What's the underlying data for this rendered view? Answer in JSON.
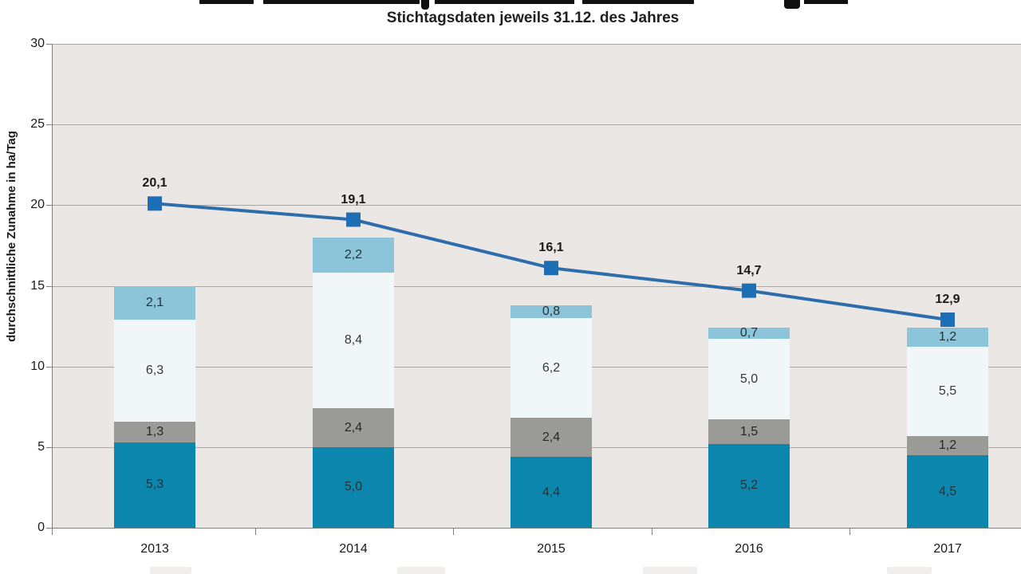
{
  "header": {
    "main_title_cropped": true,
    "subtitle": "Stichtagsdaten jeweils 31.12. des Jahres"
  },
  "y_axis": {
    "label": "durchschnittliche Zunahme in ha/Tag",
    "ticks": [
      "0",
      "5",
      "10",
      "15",
      "20",
      "25",
      "30"
    ]
  },
  "x_axis": {
    "ticks": [
      "2013",
      "2014",
      "2015",
      "2016",
      "2017"
    ]
  },
  "chart_data": {
    "type": "bar",
    "subtype": "stacked-column-with-line-overlay",
    "title": "",
    "subtitle": "Stichtagsdaten jeweils 31.12. des Jahres",
    "xlabel": "",
    "ylabel": "durchschnittliche Zunahme in ha/Tag",
    "categories": [
      "2013",
      "2014",
      "2015",
      "2016",
      "2017"
    ],
    "bar_series": [
      {
        "name": "",
        "color": "#0d86ad",
        "values": [
          5.3,
          5.0,
          4.4,
          5.2,
          4.5
        ],
        "labels": [
          "5,3",
          "5,0",
          "4,4",
          "5,2",
          "4,5"
        ],
        "label_color": "#263238"
      },
      {
        "name": "",
        "color": "#9a9a97",
        "values": [
          1.3,
          2.4,
          2.4,
          1.5,
          1.2
        ],
        "labels": [
          "1,3",
          "2,4",
          "2,4",
          "1,5",
          "1,2"
        ],
        "label_color": "#262626"
      },
      {
        "name": "",
        "color": "#f1f6f9",
        "values": [
          6.3,
          8.4,
          6.2,
          5.0,
          5.5
        ],
        "labels": [
          "6,3",
          "8,4",
          "6,2",
          "5,0",
          "5,5"
        ],
        "label_color": "#33383c"
      },
      {
        "name": "",
        "color": "#8cc4da",
        "values": [
          2.1,
          2.2,
          0.8,
          0.7,
          1.2
        ],
        "labels": [
          "2,1",
          "2,2",
          "0,8",
          "0,7",
          "1,2"
        ],
        "label_color": "#263238"
      }
    ],
    "line_series": {
      "name": "",
      "color": "#2d6dab",
      "marker_color": "#1d6fb5",
      "values": [
        20.1,
        19.1,
        16.1,
        14.7,
        12.9
      ],
      "labels": [
        "20,1",
        "19,1",
        "16,1",
        "14,7",
        "12,9"
      ]
    },
    "stack_totals": [
      15.0,
      18.0,
      13.8,
      12.4,
      12.4
    ],
    "ylim": [
      0,
      30
    ],
    "ytick_step": 5,
    "grid": true,
    "plot_background": "#eae7e4",
    "gridline_color": "#a8a6a3",
    "legend_position": "cropped-below-bottom-edge",
    "decimal_separator": ","
  }
}
